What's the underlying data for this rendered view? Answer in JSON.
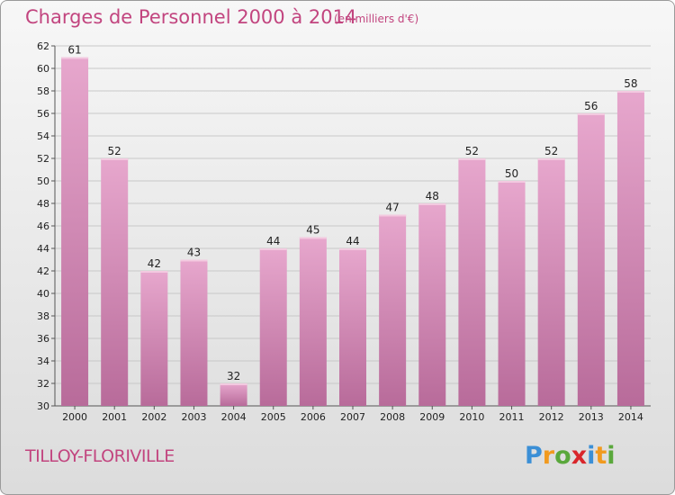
{
  "header": {
    "title": "Charges de Personnel 2000 à 2014",
    "subtitle": "(en milliers d'€)"
  },
  "footer": {
    "commune": "TILLOY-FLORIVILLE",
    "logo_letters": [
      "P",
      "r",
      "o",
      "x",
      "i",
      "t",
      "i"
    ]
  },
  "colors": {
    "bar_top": "#e7a7cd",
    "bar_bottom": "#b86b9a",
    "text_accent": "#c2457f",
    "logo": [
      "#3b8fd6",
      "#f19a1f",
      "#5aa83c",
      "#d9262b",
      "#3b8fd6",
      "#f19a1f",
      "#5aa83c"
    ]
  },
  "chart_data": {
    "type": "bar",
    "title": "Charges de Personnel 2000 à 2014",
    "subtitle": "(en milliers d'€)",
    "xlabel": "",
    "ylabel": "",
    "categories": [
      "2000",
      "2001",
      "2002",
      "2003",
      "2004",
      "2005",
      "2006",
      "2007",
      "2008",
      "2009",
      "2010",
      "2011",
      "2012",
      "2013",
      "2014"
    ],
    "values": [
      61,
      52,
      42,
      43,
      32,
      44,
      45,
      44,
      47,
      48,
      52,
      50,
      52,
      56,
      58
    ],
    "ylim": [
      30,
      62
    ],
    "yticks": [
      30,
      32,
      34,
      36,
      38,
      40,
      42,
      44,
      46,
      48,
      50,
      52,
      54,
      56,
      58,
      60,
      62
    ],
    "grid": true
  }
}
